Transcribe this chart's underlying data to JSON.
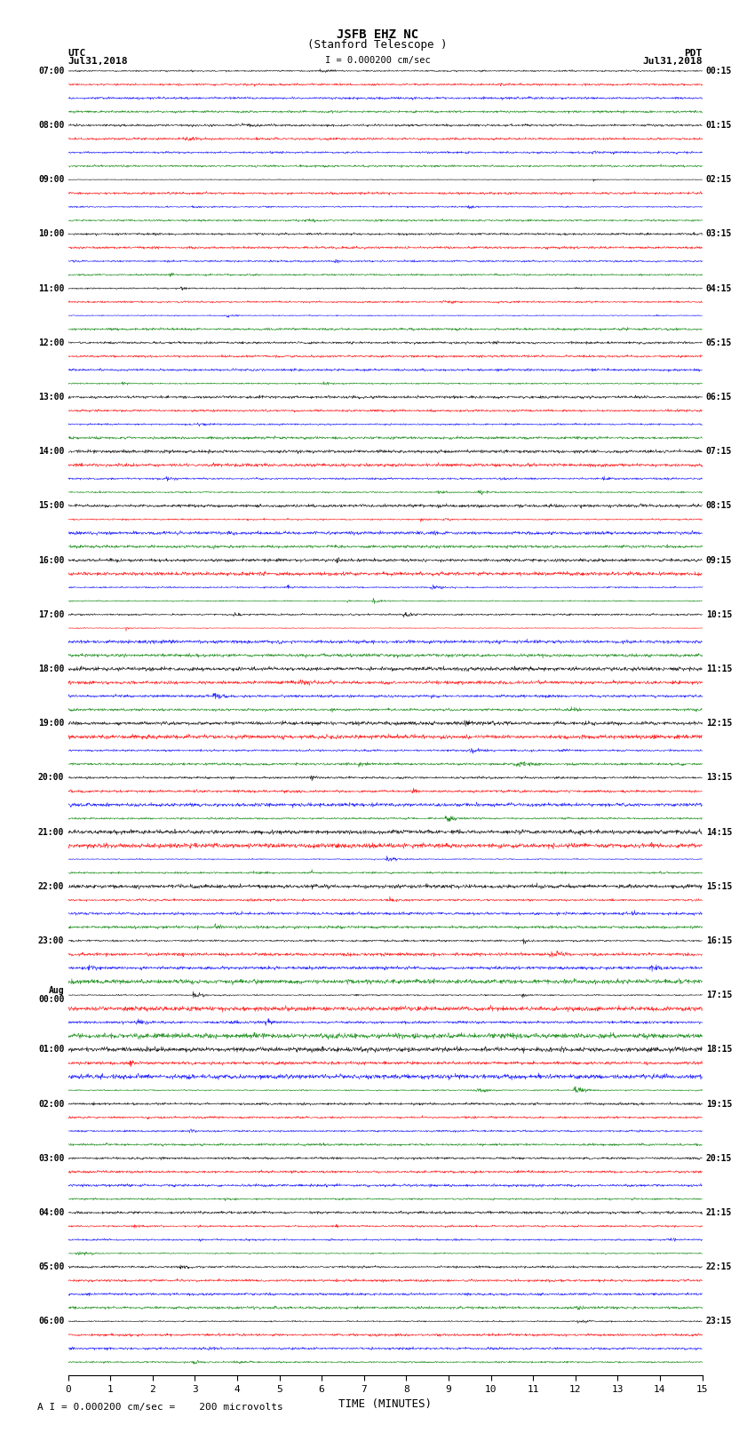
{
  "title_line1": "JSFB EHZ NC",
  "title_line2": "(Stanford Telescope )",
  "scale_text": "I = 0.000200 cm/sec",
  "footer_text": "A I = 0.000200 cm/sec =    200 microvolts",
  "utc_label": "UTC",
  "utc_date": "Jul31,2018",
  "pdt_label": "PDT",
  "pdt_date": "Jul31,2018",
  "xlabel": "TIME (MINUTES)",
  "left_times_utc": [
    "07:00",
    "08:00",
    "09:00",
    "10:00",
    "11:00",
    "12:00",
    "13:00",
    "14:00",
    "15:00",
    "16:00",
    "17:00",
    "18:00",
    "19:00",
    "20:00",
    "21:00",
    "22:00",
    "23:00",
    "Aug\n00:00",
    "01:00",
    "02:00",
    "03:00",
    "04:00",
    "05:00",
    "06:00"
  ],
  "right_times_pdt": [
    "00:15",
    "01:15",
    "02:15",
    "03:15",
    "04:15",
    "05:15",
    "06:15",
    "07:15",
    "08:15",
    "09:15",
    "10:15",
    "11:15",
    "12:15",
    "13:15",
    "14:15",
    "15:15",
    "16:15",
    "17:15",
    "18:15",
    "19:15",
    "20:15",
    "21:15",
    "22:15",
    "23:15"
  ],
  "num_hours": 24,
  "traces_per_hour": 4,
  "colors": [
    "black",
    "red",
    "blue",
    "green"
  ],
  "bg_color": "white",
  "noise_seed": 42,
  "xlim": [
    0,
    15
  ],
  "xticks": [
    0,
    1,
    2,
    3,
    4,
    5,
    6,
    7,
    8,
    9,
    10,
    11,
    12,
    13,
    14,
    15
  ]
}
